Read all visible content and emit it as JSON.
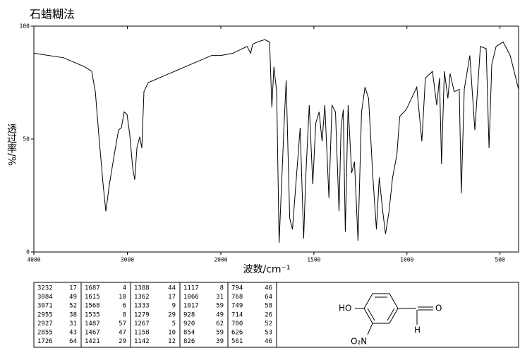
{
  "chart_data": {
    "type": "line",
    "title": "石蜡糊法",
    "xlabel": "波数/cm⁻¹",
    "ylabel": "透过率/%",
    "xlim": [
      4000,
      400
    ],
    "xscale_change": 2000,
    "xticks": [
      4000,
      3000,
      2000,
      1500,
      1000,
      500
    ],
    "ylim": [
      0,
      100
    ],
    "yticks": [
      0,
      50,
      100
    ],
    "series": [
      {
        "color": "#000000",
        "x": [
          4000,
          3683,
          3457,
          3381,
          3343,
          3306,
          3260,
          3230,
          3192,
          3140,
          3094,
          3064,
          3034,
          3004,
          2974,
          2943,
          2921,
          2898,
          2868,
          2845,
          2823,
          2777,
          2551,
          2325,
          2098,
          2000,
          1935,
          1859,
          1840,
          1829,
          1802,
          1764,
          1738,
          1726,
          1715,
          1700,
          1687,
          1660,
          1649,
          1630,
          1615,
          1574,
          1555,
          1544,
          1525,
          1506,
          1490,
          1472,
          1456,
          1441,
          1419,
          1403,
          1384,
          1365,
          1354,
          1342,
          1331,
          1316,
          1297,
          1282,
          1263,
          1244,
          1225,
          1206,
          1183,
          1164,
          1149,
          1130,
          1115,
          1096,
          1077,
          1054,
          1039,
          1004,
          947,
          920,
          901,
          863,
          840,
          825,
          814,
          799,
          780,
          768,
          746,
          719,
          708,
          692,
          662,
          635,
          605,
          574,
          559,
          544,
          521,
          483,
          445,
          400
        ],
        "values": [
          88,
          86,
          82,
          80,
          71,
          52,
          30,
          18,
          30,
          43,
          54,
          55,
          62,
          61,
          52,
          37,
          32,
          46,
          51,
          46,
          71,
          75,
          79,
          83,
          87,
          87,
          88,
          91,
          88,
          92,
          93,
          94,
          93,
          64,
          82,
          71,
          4,
          57,
          76,
          15,
          10,
          55,
          6,
          33,
          65,
          30,
          57,
          62,
          49,
          65,
          24,
          65,
          62,
          18,
          55,
          63,
          9,
          65,
          35,
          40,
          5,
          62,
          73,
          68,
          33,
          10,
          33,
          18,
          8,
          18,
          33,
          43,
          60,
          63,
          73,
          49,
          77,
          80,
          65,
          77,
          39,
          80,
          68,
          79,
          71,
          72,
          26,
          72,
          87,
          54,
          91,
          90,
          46,
          83,
          91,
          93,
          87,
          72
        ]
      }
    ]
  },
  "peak_table": [
    [
      3232,
      17
    ],
    [
      3084,
      49
    ],
    [
      3071,
      52
    ],
    [
      2955,
      38
    ],
    [
      2927,
      31
    ],
    [
      2855,
      43
    ],
    [
      1726,
      64
    ],
    [
      1687,
      4
    ],
    [
      1615,
      10
    ],
    [
      1568,
      6
    ],
    [
      1535,
      8
    ],
    [
      1487,
      57
    ],
    [
      1467,
      47
    ],
    [
      1421,
      29
    ],
    [
      1388,
      44
    ],
    [
      1362,
      17
    ],
    [
      1333,
      9
    ],
    [
      1279,
      29
    ],
    [
      1267,
      5
    ],
    [
      1158,
      10
    ],
    [
      1142,
      12
    ],
    [
      1117,
      8
    ],
    [
      1066,
      31
    ],
    [
      1017,
      59
    ],
    [
      928,
      49
    ],
    [
      920,
      62
    ],
    [
      854,
      59
    ],
    [
      826,
      39
    ],
    [
      794,
      46
    ],
    [
      768,
      64
    ],
    [
      749,
      58
    ],
    [
      714,
      26
    ],
    [
      700,
      52
    ],
    [
      626,
      53
    ],
    [
      561,
      46
    ]
  ],
  "structure": {
    "labels": [
      "HO",
      "O",
      "H",
      "O₂N"
    ]
  }
}
